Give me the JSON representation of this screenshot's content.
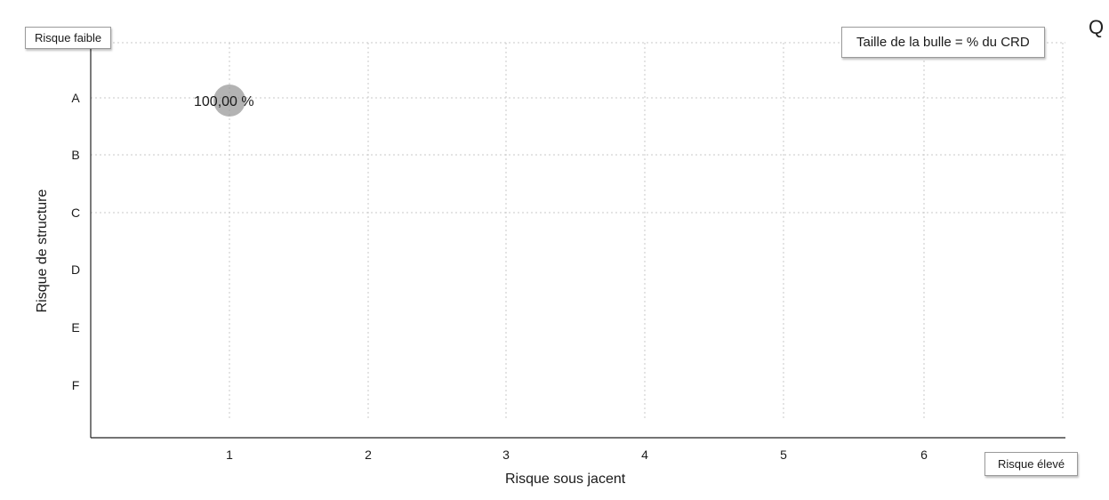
{
  "chart_data": {
    "type": "scatter",
    "subtype": "bubble",
    "xlabel": "Risque sous jacent",
    "ylabel": "Risque de structure",
    "x_categories": [
      "1",
      "2",
      "3",
      "4",
      "5",
      "6"
    ],
    "y_categories": [
      "A",
      "B",
      "C",
      "D",
      "E",
      "F"
    ],
    "points": [
      {
        "x": "1",
        "y": "A",
        "size_pct": 100.0,
        "label": "100,00 %"
      }
    ],
    "legend": "Taille de la bulle = % du CRD",
    "corner_label_low": "Risque faible",
    "corner_label_high": "Risque élevé",
    "grid": true,
    "bubble_color": "#9a9a9a"
  },
  "corner_glyph": "Q"
}
